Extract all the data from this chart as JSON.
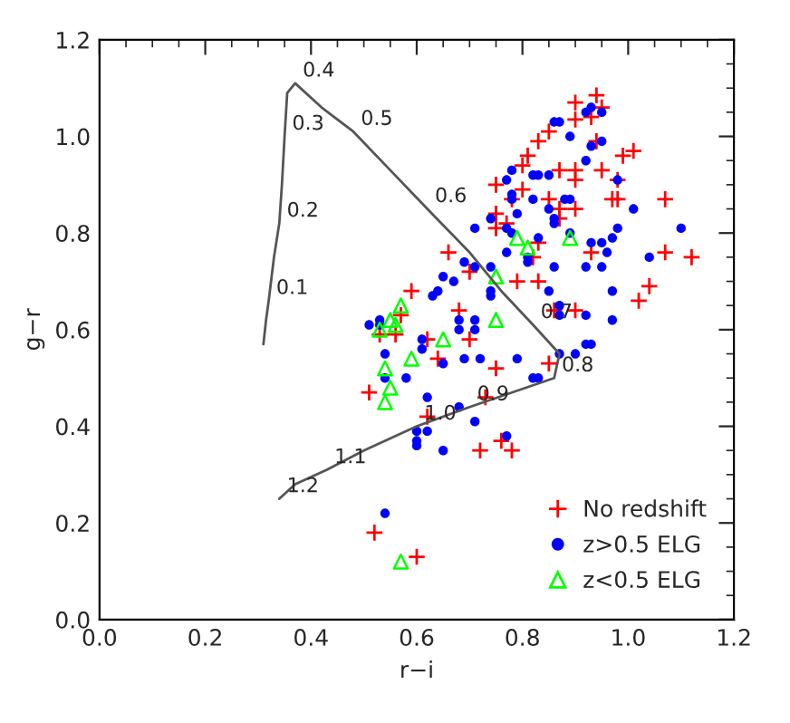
{
  "chart_data": {
    "type": "scatter",
    "xlabel": "r−i",
    "ylabel": "g−r",
    "xlim": [
      0,
      1.2
    ],
    "ylim": [
      0,
      1.2
    ],
    "xticks": [
      {
        "value": 0,
        "label": "0.0"
      },
      {
        "value": 0.2,
        "label": "0.2"
      },
      {
        "value": 0.4,
        "label": "0.4"
      },
      {
        "value": 0.6,
        "label": "0.6"
      },
      {
        "value": 0.8,
        "label": "0.8"
      },
      {
        "value": 1.0,
        "label": "1.0"
      },
      {
        "value": 1.2,
        "label": "1.2"
      }
    ],
    "yticks": [
      {
        "value": 0,
        "label": "0.0"
      },
      {
        "value": 0.2,
        "label": "0.2"
      },
      {
        "value": 0.4,
        "label": "0.4"
      },
      {
        "value": 0.6,
        "label": "0.6"
      },
      {
        "value": 0.8,
        "label": "0.8"
      },
      {
        "value": 1.0,
        "label": "1.0"
      },
      {
        "value": 1.2,
        "label": "1.2"
      }
    ],
    "grid": false,
    "legend": "bottom right",
    "series": [
      {
        "type": "line",
        "color": "#555555",
        "marker": "none",
        "line_style": "solid",
        "x": [
          0.31,
          0.315,
          0.32,
          0.33,
          0.34,
          0.345,
          0.35,
          0.355,
          0.37,
          0.42,
          0.48,
          0.55,
          0.62,
          0.7,
          0.76,
          0.82,
          0.87,
          0.86,
          0.78,
          0.7,
          0.6,
          0.5,
          0.43,
          0.37,
          0.34
        ],
        "values": [
          0.57,
          0.62,
          0.66,
          0.75,
          0.82,
          0.9,
          1.0,
          1.09,
          1.11,
          1.06,
          1.01,
          0.93,
          0.85,
          0.76,
          0.68,
          0.61,
          0.55,
          0.5,
          0.47,
          0.44,
          0.4,
          0.35,
          0.31,
          0.28,
          0.25
        ]
      },
      {
        "name": "No redshift",
        "color": "#ff0000",
        "marker": "cross",
        "x": [
          0.9,
          0.94,
          0.95,
          0.93,
          0.9,
          0.85,
          0.83,
          0.94,
          0.81,
          0.99,
          1.01,
          0.8,
          0.87,
          0.9,
          0.95,
          0.75,
          0.8,
          0.9,
          0.98,
          0.97,
          1.07,
          0.78,
          0.85,
          0.9,
          0.75,
          0.87,
          0.87,
          0.75,
          0.77,
          0.83,
          0.82,
          0.93,
          1.07,
          1.12,
          0.66,
          0.7,
          0.79,
          0.83,
          1.04,
          1.02,
          0.59,
          0.57,
          0.68,
          0.86,
          0.9,
          0.53,
          0.56,
          0.62,
          0.7,
          0.64,
          0.75,
          0.85,
          0.51,
          0.62,
          0.73,
          0.72,
          0.76,
          0.78,
          0.52,
          0.6,
          0.98
        ],
        "values": [
          1.07,
          1.085,
          1.06,
          1.04,
          1.035,
          1.01,
          0.99,
          0.99,
          0.96,
          0.96,
          0.97,
          0.94,
          0.93,
          0.93,
          0.93,
          0.9,
          0.89,
          0.91,
          0.87,
          0.87,
          0.87,
          0.87,
          0.87,
          0.85,
          0.84,
          0.83,
          0.85,
          0.81,
          0.82,
          0.78,
          0.75,
          0.76,
          0.76,
          0.75,
          0.76,
          0.72,
          0.7,
          0.7,
          0.69,
          0.66,
          0.68,
          0.63,
          0.64,
          0.64,
          0.64,
          0.59,
          0.59,
          0.58,
          0.58,
          0.54,
          0.52,
          0.53,
          0.47,
          0.42,
          0.46,
          0.35,
          0.37,
          0.35,
          0.18,
          0.13,
          0.91
        ]
      },
      {
        "name": "z>0.5 ELG",
        "color": "#0000ff",
        "marker": "circle",
        "x": [
          0.54,
          0.95,
          0.93,
          0.92,
          0.89,
          0.87,
          0.86,
          0.95,
          0.93,
          0.78,
          0.82,
          0.83,
          0.85,
          0.92,
          0.77,
          0.98,
          0.78,
          0.78,
          0.82,
          0.88,
          0.89,
          0.79,
          0.85,
          1.01,
          0.71,
          0.74,
          0.77,
          0.78,
          0.86,
          0.86,
          0.83,
          0.89,
          0.93,
          0.95,
          0.97,
          0.98,
          1.1,
          0.77,
          0.81,
          0.81,
          0.86,
          0.92,
          0.95,
          0.96,
          1.04,
          0.74,
          0.71,
          0.69,
          0.67,
          0.64,
          0.63,
          0.65,
          0.74,
          0.74,
          0.85,
          0.97,
          0.87,
          0.87,
          0.92,
          0.97,
          0.68,
          0.71,
          0.68,
          0.71,
          0.51,
          0.53,
          0.53,
          0.61,
          0.61,
          0.65,
          0.69,
          0.72,
          0.79,
          0.54,
          0.54,
          0.58,
          0.87,
          0.9,
          0.92,
          0.93,
          0.82,
          0.83,
          0.62,
          0.68,
          0.6,
          0.62,
          0.6,
          0.6,
          0.65,
          0.71,
          0.77
        ],
        "values": [
          0.22,
          1.05,
          1.06,
          1.05,
          1.0,
          1.03,
          1.03,
          0.99,
          0.98,
          0.93,
          0.92,
          0.92,
          0.92,
          0.95,
          0.91,
          0.91,
          0.88,
          0.87,
          0.87,
          0.87,
          0.87,
          0.84,
          0.85,
          0.85,
          0.81,
          0.83,
          0.81,
          0.8,
          0.83,
          0.82,
          0.79,
          0.8,
          0.78,
          0.78,
          0.79,
          0.81,
          0.81,
          0.76,
          0.75,
          0.74,
          0.73,
          0.73,
          0.73,
          0.76,
          0.75,
          0.73,
          0.73,
          0.74,
          0.7,
          0.68,
          0.67,
          0.71,
          0.68,
          0.67,
          0.68,
          0.68,
          0.65,
          0.63,
          0.63,
          0.62,
          0.62,
          0.62,
          0.6,
          0.6,
          0.61,
          0.62,
          0.61,
          0.58,
          0.56,
          0.53,
          0.54,
          0.54,
          0.54,
          0.55,
          0.5,
          0.5,
          0.55,
          0.55,
          0.57,
          0.57,
          0.5,
          0.5,
          0.46,
          0.44,
          0.39,
          0.39,
          0.37,
          0.36,
          0.35,
          0.41,
          0.38
        ]
      },
      {
        "name": "z<0.5 ELG",
        "color": "#00ff00",
        "marker": "triangle",
        "x": [
          0.57,
          0.55,
          0.53,
          0.56,
          0.54,
          0.55,
          0.54,
          0.59,
          0.65,
          0.75,
          0.75,
          0.79,
          0.81,
          0.89,
          0.57
        ],
        "values": [
          0.65,
          0.62,
          0.6,
          0.61,
          0.52,
          0.48,
          0.45,
          0.54,
          0.58,
          0.71,
          0.62,
          0.79,
          0.77,
          0.79,
          0.12
        ]
      }
    ],
    "annotations": [
      {
        "text": "0.1",
        "x": 0.32,
        "y": 0.66
      },
      {
        "text": "0.2",
        "x": 0.34,
        "y": 0.82
      },
      {
        "text": "0.3",
        "x": 0.35,
        "y": 1.0
      },
      {
        "text": "0.4",
        "x": 0.37,
        "y": 1.11
      },
      {
        "text": "0.5",
        "x": 0.48,
        "y": 1.01
      },
      {
        "text": "0.6",
        "x": 0.62,
        "y": 0.85
      },
      {
        "text": "0.7",
        "x": 0.82,
        "y": 0.61
      },
      {
        "text": "0.8",
        "x": 0.86,
        "y": 0.5
      },
      {
        "text": "0.9",
        "x": 0.7,
        "y": 0.44
      },
      {
        "text": "1.0",
        "x": 0.6,
        "y": 0.4
      },
      {
        "text": "1.1",
        "x": 0.43,
        "y": 0.31
      },
      {
        "text": "1.2",
        "x": 0.34,
        "y": 0.25
      }
    ]
  }
}
